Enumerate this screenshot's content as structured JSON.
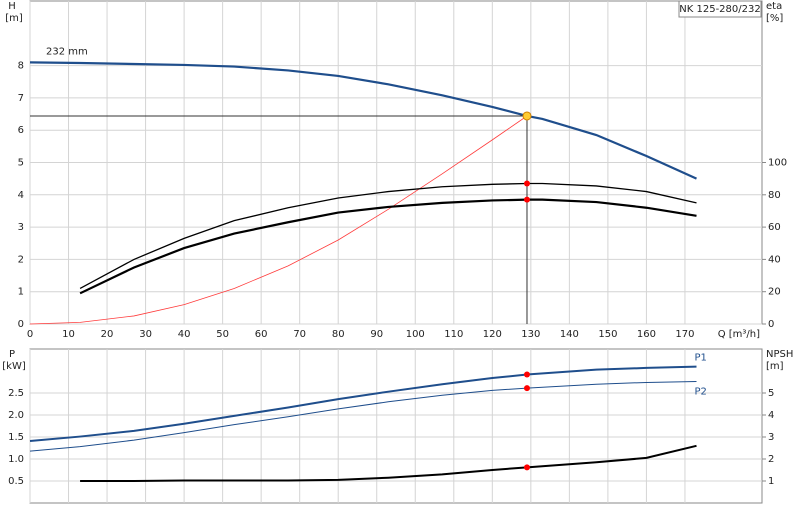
{
  "chart_data": [
    {
      "type": "line",
      "y_label": "H",
      "y_unit": "[m]",
      "y2_label": "eta",
      "y2_unit": "[%]",
      "x_label": "Q [m³/h]",
      "annotation": "232 mm",
      "title": "NK 125-280/232",
      "xlim": [
        0,
        190
      ],
      "xticks": [
        0,
        10,
        20,
        30,
        40,
        50,
        60,
        70,
        80,
        90,
        100,
        110,
        120,
        130,
        140,
        150,
        160,
        170
      ],
      "ylim": [
        0,
        10
      ],
      "yticks": [
        0,
        1,
        2,
        3,
        4,
        5,
        6,
        7,
        8
      ],
      "y2lim": [
        0,
        200
      ],
      "y2ticks": [
        0,
        20,
        40,
        60,
        80,
        100
      ],
      "grid": true,
      "duty_x": 129,
      "series": [
        {
          "color": "#1f4e8c",
          "line_width": 2.2,
          "marker_color": "#ffcc33",
          "x": [
            0,
            13,
            27,
            40,
            53,
            67,
            80,
            93,
            107,
            120,
            129,
            133,
            147,
            160,
            173
          ],
          "values": [
            8.1,
            8.08,
            8.05,
            8.02,
            7.97,
            7.85,
            7.68,
            7.42,
            7.08,
            6.72,
            6.44,
            6.35,
            5.85,
            5.2,
            4.5
          ]
        },
        {
          "color": "#ff3b3b",
          "line_width": 0.8,
          "x": [
            0,
            13,
            27,
            40,
            53,
            67,
            80,
            93,
            107,
            120,
            129
          ],
          "values": [
            0,
            0.05,
            0.25,
            0.6,
            1.1,
            1.8,
            2.6,
            3.55,
            4.65,
            5.7,
            6.44
          ]
        },
        {
          "color": "#000000",
          "line_width": 1.3,
          "axis": "y2",
          "marker_color": "#ff0000",
          "x": [
            13,
            27,
            40,
            53,
            67,
            80,
            93,
            107,
            120,
            129,
            133,
            147,
            160,
            173
          ],
          "values": [
            22,
            40,
            53,
            64,
            72,
            78,
            82,
            85,
            86.5,
            87,
            87,
            85.5,
            82,
            75
          ]
        },
        {
          "color": "#000000",
          "line_width": 2.2,
          "axis": "y2",
          "marker_color": "#ff0000",
          "x": [
            13,
            27,
            40,
            53,
            67,
            80,
            93,
            107,
            120,
            129,
            133,
            147,
            160,
            173
          ],
          "values": [
            19,
            35,
            47,
            56,
            63,
            69,
            72.5,
            75,
            76.5,
            77,
            77,
            75.5,
            72,
            67
          ]
        }
      ]
    },
    {
      "type": "line",
      "y_label": "P",
      "y_unit": "[kW]",
      "y2_label": "NPSH",
      "y2_unit": "[m]",
      "xlim": [
        0,
        190
      ],
      "xticks": [
        0,
        10,
        20,
        30,
        40,
        50,
        60,
        70,
        80,
        90,
        100,
        110,
        120,
        130,
        140,
        150,
        160,
        170
      ],
      "ylim": [
        0,
        3.5
      ],
      "yticks": [
        0.5,
        {
          "value": 1,
          "label": "1.0"
        },
        1.5,
        {
          "value": 2,
          "label": "2.0"
        },
        2.5
      ],
      "y2lim": [
        0,
        7
      ],
      "y2ticks": [
        1,
        2,
        3,
        4,
        5
      ],
      "grid": true,
      "duty_x": 129,
      "series": [
        {
          "name": "P1",
          "color": "#1f4e8c",
          "line_width": 2,
          "marker_color": "#ff0000",
          "x": [
            0,
            13,
            27,
            40,
            53,
            67,
            80,
            93,
            107,
            120,
            129,
            147,
            160,
            173
          ],
          "values": [
            1.41,
            1.51,
            1.64,
            1.8,
            1.98,
            2.17,
            2.36,
            2.53,
            2.7,
            2.84,
            2.92,
            3.03,
            3.07,
            3.1
          ]
        },
        {
          "name": "P2",
          "color": "#1f4e8c",
          "line_width": 1,
          "marker_color": "#ff0000",
          "x": [
            0,
            13,
            27,
            40,
            53,
            67,
            80,
            93,
            107,
            120,
            129,
            147,
            160,
            173
          ],
          "values": [
            1.18,
            1.28,
            1.43,
            1.6,
            1.78,
            1.96,
            2.14,
            2.3,
            2.45,
            2.56,
            2.61,
            2.7,
            2.74,
            2.76
          ]
        },
        {
          "color": "#000000",
          "line_width": 2,
          "axis": "y2",
          "marker_color": "#ff0000",
          "x": [
            13,
            27,
            40,
            53,
            67,
            80,
            93,
            107,
            120,
            129,
            147,
            160,
            173
          ],
          "values": [
            1.0,
            1.0,
            1.02,
            1.02,
            1.02,
            1.05,
            1.15,
            1.3,
            1.5,
            1.62,
            1.85,
            2.05,
            2.6
          ]
        }
      ]
    }
  ]
}
